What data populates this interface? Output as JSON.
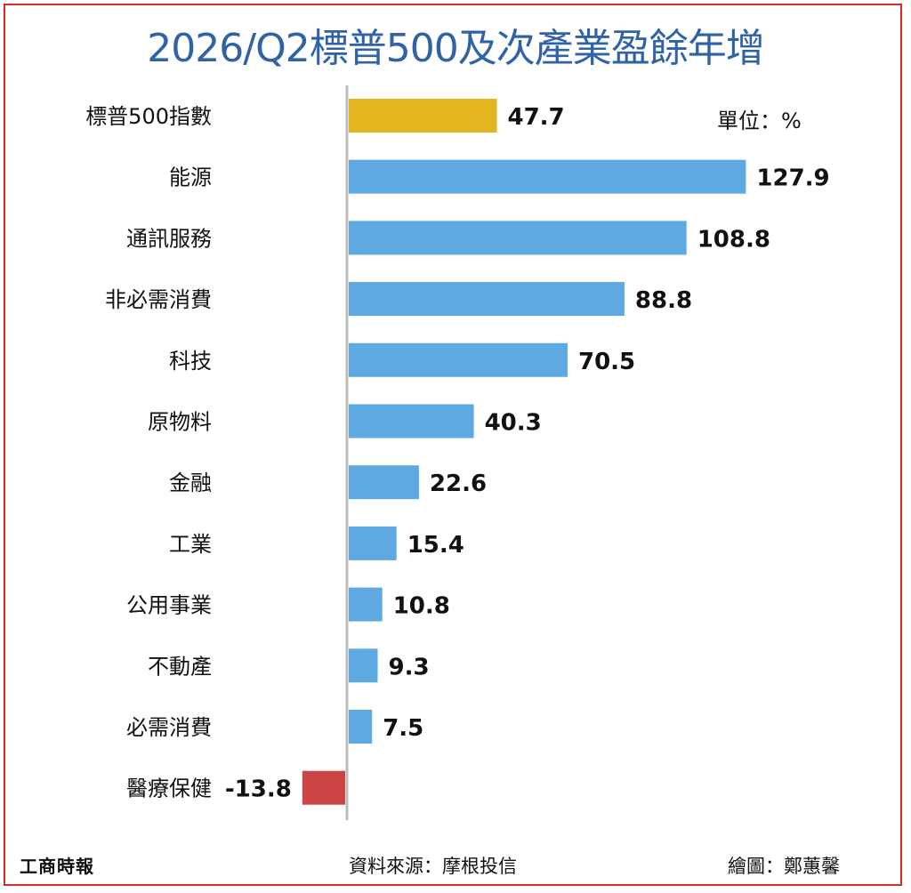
{
  "header": {
    "title": "2026/Q2標普500及次產業盈餘年增",
    "unit": "單位：%"
  },
  "footer": {
    "logo": "工商時報",
    "source": "資料來源：摩根投信",
    "credit": "繪圖：鄭蕙馨"
  },
  "colors": {
    "index_bar": "#e3b61f",
    "positive_bar": "#5ea9e2",
    "negative_bar": "#cc4444",
    "frame": "#d62b2b",
    "title": "#2f62a6"
  },
  "chart_data": {
    "type": "bar",
    "orientation": "horizontal",
    "categories": [
      "標普500指數",
      "能源",
      "通訊服務",
      "非必需消費",
      "科技",
      "原物料",
      "金融",
      "工業",
      "公用事業",
      "不動產",
      "必需消費",
      "醫療保健"
    ],
    "values": [
      47.7,
      127.9,
      108.8,
      88.8,
      70.5,
      40.3,
      22.6,
      15.4,
      10.8,
      9.3,
      7.5,
      -13.8
    ],
    "value_labels": [
      "47.7",
      "127.9",
      "108.8",
      "88.8",
      "70.5",
      "40.3",
      "22.6",
      "15.4",
      "10.8",
      "9.3",
      "7.5",
      "-13.8"
    ],
    "bar_color_roles": [
      "index",
      "positive",
      "positive",
      "positive",
      "positive",
      "positive",
      "positive",
      "positive",
      "positive",
      "positive",
      "positive",
      "negative"
    ],
    "title": "2026/Q2標普500及次產業盈餘年增",
    "xlabel": "",
    "ylabel": "",
    "unit": "%",
    "xlim": [
      -15,
      130
    ],
    "grid": false,
    "legend": "none"
  }
}
